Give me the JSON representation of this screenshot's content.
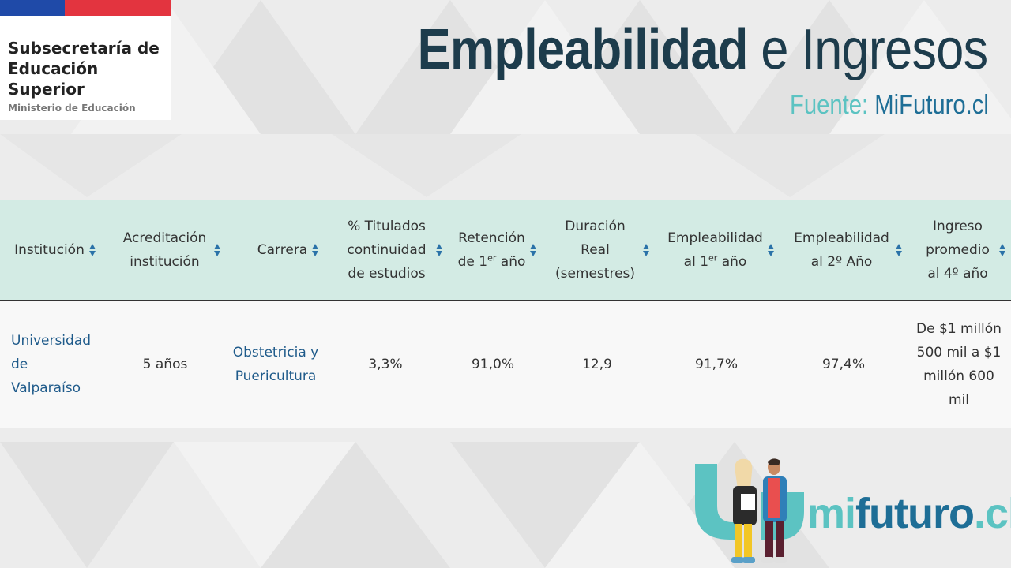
{
  "logo": {
    "title": "Subsecretaría de Educación Superior",
    "subtitle": "Ministerio de Educación"
  },
  "header": {
    "title_bold": "Empleabilidad",
    "title_rest": "e Ingresos",
    "source_label": "Fuente:",
    "source_value": "MiFuturo.cl"
  },
  "table": {
    "columns": [
      {
        "label": "Institución"
      },
      {
        "label": "Acreditación institución"
      },
      {
        "label": "Carrera"
      },
      {
        "label": "% Titulados continuidad de estudios"
      },
      {
        "label_main": "Retención",
        "label_pre": "de 1",
        "label_sup": "er",
        "label_post": " año"
      },
      {
        "label": "Duración Real (semestres)"
      },
      {
        "label_main": "Empleabilidad",
        "label_pre": "al 1",
        "label_sup": "er",
        "label_post": " año"
      },
      {
        "label": "Empleabilidad al 2º Año"
      },
      {
        "label": "Ingreso promedio al 4º año"
      }
    ],
    "row": {
      "institucion": "Universidad de Valparaíso",
      "acreditacion": "5 años",
      "carrera": "Obstetricia y Puericultura",
      "titulados": "3,3%",
      "retencion": "91,0%",
      "duracion": "12,9",
      "empleabilidad_1": "91,7%",
      "empleabilidad_2": "97,4%",
      "ingreso": "De $1 millón 500 mil a $1 millón 600 mil"
    }
  },
  "brand": {
    "text_a": "mi",
    "text_b": "futuro",
    "text_c": ".cl"
  },
  "colors": {
    "header_bg": "#d3ebe4",
    "title": "#1d3c4c",
    "teal": "#5cc3c2",
    "blue": "#1e6e96",
    "sort_icon": "#2a72a8"
  }
}
